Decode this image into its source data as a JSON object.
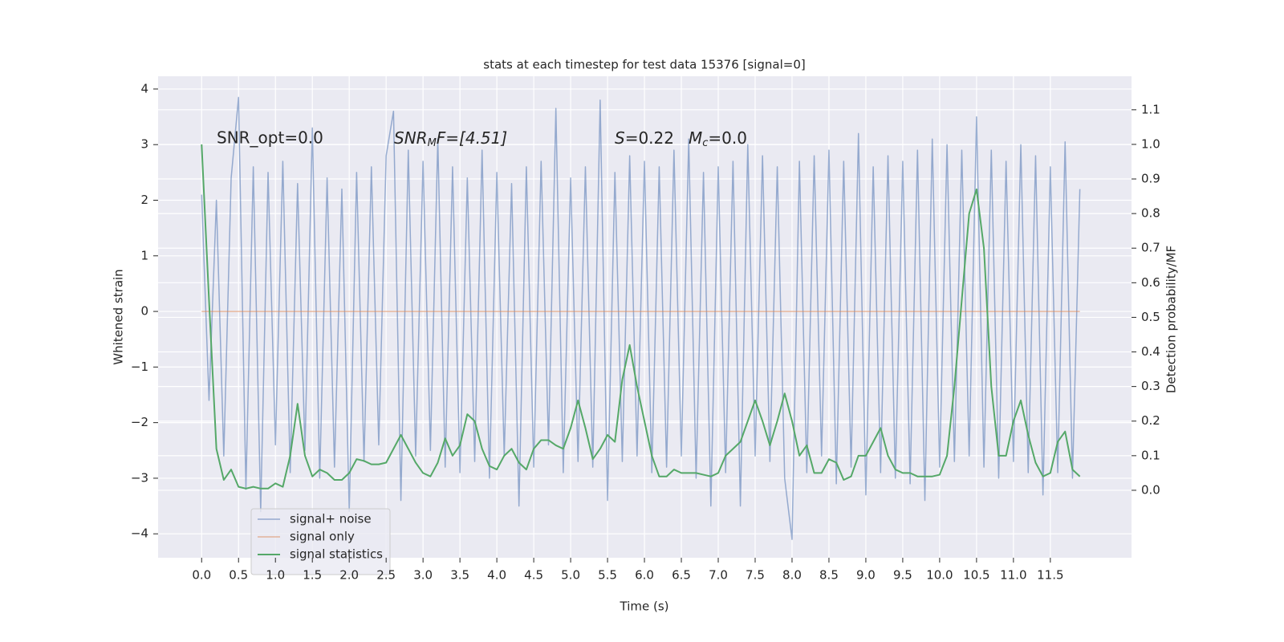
{
  "chart_data": {
    "type": "line",
    "title": "stats at each timestep for test data 15376 [signal=0]",
    "xlabel": "Time (s)",
    "ylabel": "Whitened strain",
    "y2label": "Detection probability/MF",
    "annotations": [
      "SNR_opt=0.0",
      [
        "SNR",
        "M",
        "F=[4.51]"
      ],
      [
        "S",
        "=0.22"
      ],
      [
        "M",
        "c",
        "=0.0"
      ]
    ],
    "x": [
      0.0,
      0.1,
      0.2,
      0.3,
      0.4,
      0.5,
      0.6,
      0.7,
      0.8,
      0.9,
      1.0,
      1.1,
      1.2,
      1.3,
      1.4,
      1.5,
      1.6,
      1.7,
      1.8,
      1.9,
      2.0,
      2.1,
      2.2,
      2.3,
      2.4,
      2.5,
      2.6,
      2.7,
      2.8,
      2.9,
      3.0,
      3.1,
      3.2,
      3.3,
      3.4,
      3.5,
      3.6,
      3.7,
      3.8,
      3.9,
      4.0,
      4.1,
      4.2,
      4.3,
      4.4,
      4.5,
      4.6,
      4.7,
      4.8,
      4.9,
      5.0,
      5.1,
      5.2,
      5.3,
      5.4,
      5.5,
      5.6,
      5.7,
      5.8,
      5.9,
      6.0,
      6.1,
      6.2,
      6.3,
      6.4,
      6.5,
      6.6,
      6.7,
      6.8,
      6.9,
      7.0,
      7.1,
      7.2,
      7.3,
      7.4,
      7.5,
      7.6,
      7.7,
      7.8,
      7.9,
      8.0,
      8.1,
      8.2,
      8.3,
      8.4,
      8.5,
      8.6,
      8.7,
      8.8,
      8.9,
      9.0,
      9.1,
      9.2,
      9.3,
      9.4,
      9.5,
      9.6,
      9.7,
      9.8,
      9.9,
      10.0,
      10.1,
      10.2,
      10.3,
      10.4,
      10.5,
      10.6,
      10.7,
      10.8,
      10.9,
      11.0,
      11.1,
      11.2,
      11.3,
      11.4,
      11.5,
      11.6,
      11.7,
      11.8,
      11.9
    ],
    "series": [
      {
        "name": "signal+ noise",
        "color": "#4c72b0",
        "values": [
          2.1,
          -1.6,
          2.0,
          -2.6,
          2.4,
          3.85,
          -3.2,
          2.6,
          -3.6,
          2.5,
          -2.4,
          2.7,
          -2.9,
          2.3,
          -2.5,
          3.3,
          -3.0,
          2.4,
          -2.8,
          2.2,
          -3.6,
          2.5,
          -2.7,
          2.6,
          -2.4,
          2.8,
          3.6,
          -3.4,
          2.9,
          -2.6,
          2.7,
          -2.5,
          3.1,
          -2.8,
          2.6,
          -2.9,
          2.4,
          -2.7,
          2.9,
          -3.0,
          2.5,
          -2.6,
          2.3,
          -3.5,
          2.6,
          -2.8,
          2.7,
          -2.4,
          3.65,
          -2.9,
          2.4,
          -2.7,
          2.6,
          -2.8,
          3.8,
          -3.4,
          2.5,
          -2.7,
          2.8,
          -2.6,
          2.7,
          -2.9,
          2.6,
          -2.8,
          2.9,
          -2.6,
          3.1,
          -3.0,
          2.5,
          -3.5,
          2.6,
          -2.9,
          2.7,
          -3.5,
          3.0,
          -2.6,
          2.8,
          -2.7,
          2.6,
          -3.0,
          -4.1,
          2.7,
          -2.9,
          2.8,
          -2.6,
          2.9,
          -3.1,
          2.7,
          -2.8,
          3.2,
          -3.3,
          2.6,
          -2.9,
          2.8,
          -3.0,
          2.7,
          -3.1,
          2.9,
          -3.4,
          3.1,
          -2.8,
          3.0,
          -2.7,
          2.9,
          -2.6,
          3.5,
          -2.8,
          2.9,
          -3.0,
          2.7,
          -2.7,
          3.0,
          -2.9,
          2.8,
          -3.3,
          2.6,
          -2.9,
          3.05,
          -3.0,
          2.2
        ]
      },
      {
        "name": "signal only",
        "color": "#dd8452",
        "values": [
          0,
          0,
          0,
          0,
          0,
          0,
          0,
          0,
          0,
          0,
          0,
          0,
          0,
          0,
          0,
          0,
          0,
          0,
          0,
          0,
          0,
          0,
          0,
          0,
          0,
          0,
          0,
          0,
          0,
          0,
          0,
          0,
          0,
          0,
          0,
          0,
          0,
          0,
          0,
          0,
          0,
          0,
          0,
          0,
          0,
          0,
          0,
          0,
          0,
          0,
          0,
          0,
          0,
          0,
          0,
          0,
          0,
          0,
          0,
          0,
          0,
          0,
          0,
          0,
          0,
          0,
          0,
          0,
          0,
          0,
          0,
          0,
          0,
          0,
          0,
          0,
          0,
          0,
          0,
          0,
          0,
          0,
          0,
          0,
          0,
          0,
          0,
          0,
          0,
          0,
          0,
          0,
          0,
          0,
          0,
          0,
          0,
          0,
          0,
          0,
          0,
          0,
          0,
          0,
          0,
          0,
          0,
          0,
          0,
          0,
          0,
          0,
          0,
          0,
          0,
          0,
          0,
          0,
          0,
          0
        ]
      },
      {
        "name": "signal statistics",
        "color": "#55a868",
        "axis": "y2",
        "values": [
          1.0,
          0.55,
          0.12,
          0.03,
          0.06,
          0.01,
          0.005,
          0.01,
          0.005,
          0.005,
          0.02,
          0.01,
          0.1,
          0.25,
          0.1,
          0.04,
          0.06,
          0.05,
          0.03,
          0.03,
          0.05,
          0.09,
          0.085,
          0.075,
          0.075,
          0.08,
          0.12,
          0.16,
          0.12,
          0.08,
          0.05,
          0.04,
          0.08,
          0.15,
          0.1,
          0.13,
          0.22,
          0.2,
          0.12,
          0.07,
          0.06,
          0.1,
          0.12,
          0.08,
          0.06,
          0.12,
          0.145,
          0.145,
          0.13,
          0.12,
          0.18,
          0.26,
          0.18,
          0.09,
          0.12,
          0.16,
          0.14,
          0.32,
          0.42,
          0.3,
          0.2,
          0.1,
          0.04,
          0.04,
          0.06,
          0.05,
          0.05,
          0.05,
          0.045,
          0.04,
          0.05,
          0.1,
          0.12,
          0.14,
          0.2,
          0.26,
          0.2,
          0.13,
          0.2,
          0.28,
          0.2,
          0.1,
          0.13,
          0.05,
          0.05,
          0.09,
          0.08,
          0.03,
          0.04,
          0.1,
          0.1,
          0.14,
          0.18,
          0.1,
          0.06,
          0.05,
          0.05,
          0.04,
          0.04,
          0.04,
          0.045,
          0.1,
          0.3,
          0.55,
          0.8,
          0.87,
          0.7,
          0.3,
          0.1,
          0.1,
          0.2,
          0.26,
          0.16,
          0.08,
          0.04,
          0.05,
          0.14,
          0.17,
          0.06,
          0.04
        ]
      }
    ],
    "xlim": [
      -0.59,
      12.6
    ],
    "ylim": [
      -4.43,
      4.23
    ],
    "y2lim": [
      -0.195,
      1.197
    ],
    "xticks": [
      {
        "value": 0,
        "label": "0.0"
      },
      {
        "value": 0.5,
        "label": "0.5"
      },
      {
        "value": 1,
        "label": "1.0"
      },
      {
        "value": 1.5,
        "label": "1.5"
      },
      {
        "value": 2,
        "label": "2.0"
      },
      {
        "value": 2.5,
        "label": "2.5"
      },
      {
        "value": 3,
        "label": "3.0"
      },
      {
        "value": 3.5,
        "label": "3.5"
      },
      {
        "value": 4,
        "label": "4.0"
      },
      {
        "value": 4.5,
        "label": "4.5"
      },
      {
        "value": 5,
        "label": "5.0"
      },
      {
        "value": 5.5,
        "label": "5.5"
      },
      {
        "value": 6,
        "label": "6.0"
      },
      {
        "value": 6.5,
        "label": "6.5"
      },
      {
        "value": 7,
        "label": "7.0"
      },
      {
        "value": 7.5,
        "label": "7.5"
      },
      {
        "value": 8,
        "label": "8.0"
      },
      {
        "value": 8.5,
        "label": "8.5"
      },
      {
        "value": 9,
        "label": "9.0"
      },
      {
        "value": 9.5,
        "label": "9.5"
      },
      {
        "value": 10,
        "label": "10.0"
      },
      {
        "value": 10.5,
        "label": "10.5"
      },
      {
        "value": 11,
        "label": "11.0"
      },
      {
        "value": 11.5,
        "label": "11.5"
      }
    ],
    "yticks": [
      {
        "value": -4,
        "label": "−4"
      },
      {
        "value": -3,
        "label": "−3"
      },
      {
        "value": -2,
        "label": "−2"
      },
      {
        "value": -1,
        "label": "−1"
      },
      0,
      1,
      2,
      3,
      4
    ],
    "y2ticks": [
      {
        "value": 0,
        "label": "0.0"
      },
      {
        "value": 0.1,
        "label": "0.1"
      },
      {
        "value": 0.2,
        "label": "0.2"
      },
      {
        "value": 0.3,
        "label": "0.3"
      },
      {
        "value": 0.4,
        "label": "0.4"
      },
      {
        "value": 0.5,
        "label": "0.5"
      },
      {
        "value": 0.6,
        "label": "0.6"
      },
      {
        "value": 0.7,
        "label": "0.7"
      },
      {
        "value": 0.8,
        "label": "0.8"
      },
      {
        "value": 0.9,
        "label": "0.9"
      },
      {
        "value": 1,
        "label": "1.0"
      },
      {
        "value": 1.1,
        "label": "1.1"
      }
    ],
    "grid": true,
    "legend": "lower left"
  }
}
